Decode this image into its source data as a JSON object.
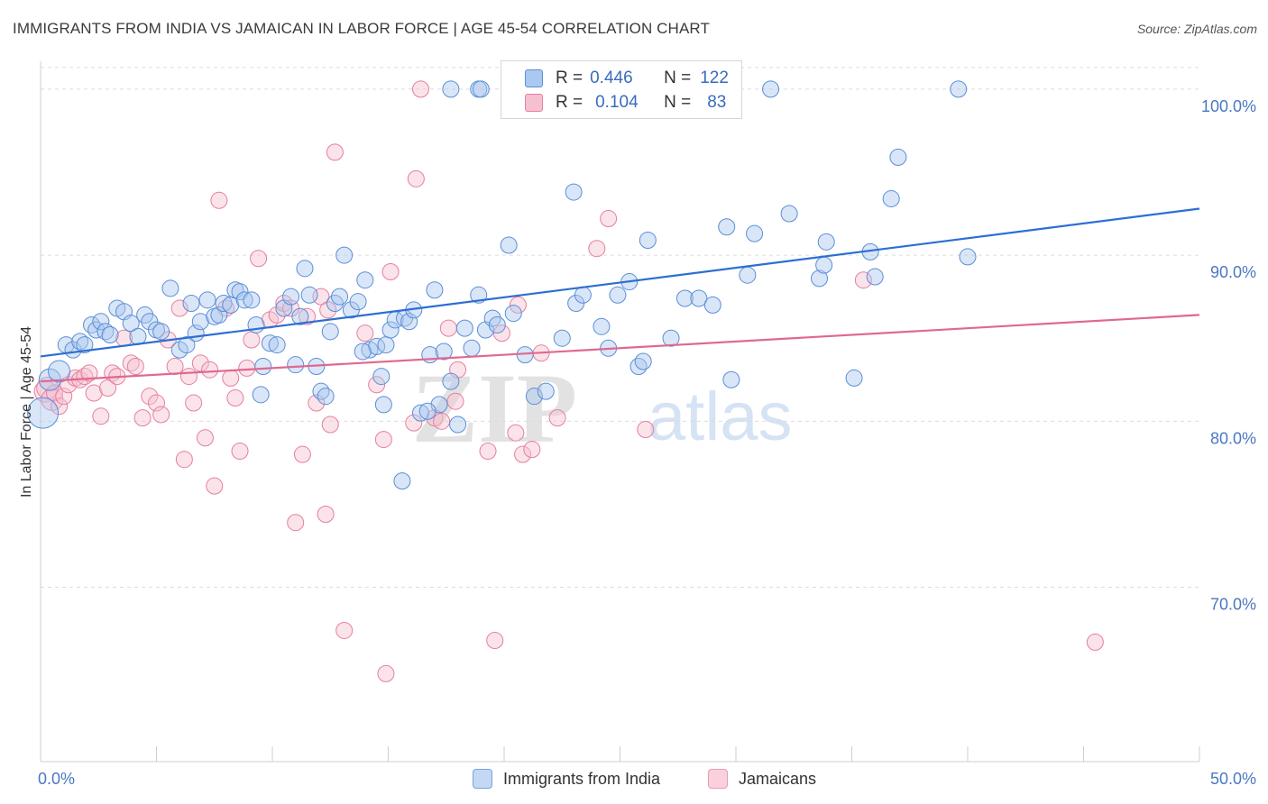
{
  "title": "IMMIGRANTS FROM INDIA VS JAMAICAN IN LABOR FORCE | AGE 45-54 CORRELATION CHART",
  "source": "Source: ZipAtlas.com",
  "watermark": {
    "zip": "ZIP",
    "atlas": "atlas"
  },
  "colors": {
    "india_fill": "#aac8f0",
    "india_stroke": "#5b8ed6",
    "india_line": "#2c6fd1",
    "jam_fill": "#f7c0d0",
    "jam_stroke": "#e57fa0",
    "jam_line": "#e0688f",
    "tick_text": "#4a78c2",
    "grid": "#dcdcdc"
  },
  "legend": {
    "india": {
      "r_label": "R =",
      "r_value": "0.446",
      "n_label": "N =",
      "n_value": "122"
    },
    "jam": {
      "r_label": "R =",
      "r_value": "0.104",
      "n_label": "N =",
      "n_value": "83"
    }
  },
  "bottom_legend": {
    "india": "Immigrants from India",
    "jam": "Jamaicans"
  },
  "chart_data": {
    "type": "scatter",
    "title": "IMMIGRANTS FROM INDIA VS JAMAICAN IN LABOR FORCE | AGE 45-54 CORRELATION CHART",
    "xlabel": "",
    "ylabel": "In Labor Force | Age 45-54",
    "xlim": [
      0,
      50
    ],
    "ylim": [
      59.5,
      102
    ],
    "y_ticks": [
      70,
      80,
      90,
      100
    ],
    "y_tick_labels": [
      "70.0%",
      "80.0%",
      "90.0%",
      "100.0%"
    ],
    "x_tick_labels": [
      "0.0%",
      "50.0%"
    ],
    "x_minor_ticks": [
      0,
      5,
      10,
      15,
      20,
      25,
      30,
      35,
      40,
      45,
      50
    ],
    "grid": true,
    "legend_position": "top-center",
    "series": [
      {
        "name": "Immigrants from India",
        "trend": [
          [
            0,
            83.9
          ],
          [
            50,
            92.8
          ]
        ],
        "points": [
          [
            0.1,
            80.5
          ],
          [
            0.4,
            82.5
          ],
          [
            0.8,
            83.0
          ],
          [
            1.1,
            84.6
          ],
          [
            1.4,
            84.3
          ],
          [
            1.7,
            84.8
          ],
          [
            1.9,
            84.6
          ],
          [
            2.2,
            85.8
          ],
          [
            2.4,
            85.5
          ],
          [
            2.6,
            86.0
          ],
          [
            2.8,
            85.4
          ],
          [
            3.0,
            85.2
          ],
          [
            3.3,
            86.8
          ],
          [
            3.6,
            86.6
          ],
          [
            3.9,
            85.9
          ],
          [
            4.2,
            85.1
          ],
          [
            4.5,
            86.4
          ],
          [
            4.7,
            86.0
          ],
          [
            5.0,
            85.5
          ],
          [
            5.2,
            85.4
          ],
          [
            5.6,
            88.0
          ],
          [
            6.0,
            84.3
          ],
          [
            6.3,
            84.6
          ],
          [
            6.5,
            87.1
          ],
          [
            6.7,
            85.3
          ],
          [
            6.9,
            86.0
          ],
          [
            7.2,
            87.3
          ],
          [
            7.5,
            86.3
          ],
          [
            7.7,
            86.4
          ],
          [
            7.9,
            87.1
          ],
          [
            8.2,
            87.0
          ],
          [
            8.4,
            87.9
          ],
          [
            8.6,
            87.8
          ],
          [
            8.8,
            87.3
          ],
          [
            9.1,
            87.3
          ],
          [
            9.3,
            85.8
          ],
          [
            9.5,
            81.6
          ],
          [
            9.6,
            83.3
          ],
          [
            9.9,
            84.7
          ],
          [
            10.2,
            84.6
          ],
          [
            10.5,
            86.8
          ],
          [
            10.8,
            87.5
          ],
          [
            11.0,
            83.4
          ],
          [
            11.2,
            86.3
          ],
          [
            11.4,
            89.2
          ],
          [
            11.6,
            87.6
          ],
          [
            11.9,
            83.3
          ],
          [
            12.1,
            81.8
          ],
          [
            12.3,
            81.5
          ],
          [
            12.5,
            85.4
          ],
          [
            12.7,
            87.1
          ],
          [
            12.9,
            87.5
          ],
          [
            13.1,
            90.0
          ],
          [
            13.4,
            86.7
          ],
          [
            13.7,
            87.2
          ],
          [
            14.0,
            88.5
          ],
          [
            14.2,
            84.3
          ],
          [
            14.5,
            84.5
          ],
          [
            14.7,
            82.7
          ],
          [
            14.9,
            84.6
          ],
          [
            15.1,
            85.5
          ],
          [
            15.3,
            86.1
          ],
          [
            15.6,
            76.4
          ],
          [
            15.7,
            86.2
          ],
          [
            15.9,
            86.0
          ],
          [
            16.1,
            86.7
          ],
          [
            16.4,
            80.5
          ],
          [
            16.8,
            84.0
          ],
          [
            17.0,
            87.9
          ],
          [
            17.2,
            81.0
          ],
          [
            17.4,
            84.2
          ],
          [
            17.7,
            82.4
          ],
          [
            18.0,
            79.8
          ],
          [
            18.3,
            85.6
          ],
          [
            18.6,
            84.4
          ],
          [
            18.9,
            87.6
          ],
          [
            19.2,
            85.5
          ],
          [
            19.5,
            86.2
          ],
          [
            19.7,
            85.8
          ],
          [
            20.2,
            90.6
          ],
          [
            20.4,
            86.5
          ],
          [
            20.9,
            84.0
          ],
          [
            21.3,
            81.5
          ],
          [
            21.8,
            81.8
          ],
          [
            22.0,
            100.0
          ],
          [
            22.5,
            85.0
          ],
          [
            23.0,
            93.8
          ],
          [
            23.1,
            87.1
          ],
          [
            23.4,
            87.6
          ],
          [
            24.2,
            85.7
          ],
          [
            24.5,
            84.4
          ],
          [
            24.9,
            87.6
          ],
          [
            25.4,
            88.4
          ],
          [
            25.8,
            83.3
          ],
          [
            26.0,
            83.6
          ],
          [
            26.2,
            90.9
          ],
          [
            27.2,
            85.0
          ],
          [
            27.8,
            87.4
          ],
          [
            28.4,
            87.4
          ],
          [
            29.0,
            87.0
          ],
          [
            29.6,
            91.7
          ],
          [
            29.8,
            82.5
          ],
          [
            30.5,
            88.8
          ],
          [
            30.8,
            91.3
          ],
          [
            31.5,
            100.0
          ],
          [
            32.3,
            92.5
          ],
          [
            33.6,
            88.6
          ],
          [
            33.8,
            89.4
          ],
          [
            33.9,
            90.8
          ],
          [
            35.1,
            82.6
          ],
          [
            35.8,
            90.2
          ],
          [
            36.0,
            88.7
          ],
          [
            36.7,
            93.4
          ],
          [
            37.0,
            95.9
          ],
          [
            39.6,
            100.0
          ],
          [
            40.0,
            89.9
          ],
          [
            17.7,
            100.0
          ],
          [
            18.9,
            100.0
          ],
          [
            19.0,
            100.0
          ],
          [
            16.7,
            80.6
          ],
          [
            14.8,
            81.0
          ],
          [
            13.9,
            84.2
          ]
        ]
      },
      {
        "name": "Jamaicans",
        "trend": [
          [
            0,
            82.4
          ],
          [
            50,
            86.4
          ]
        ],
        "points": [
          [
            0.2,
            81.8
          ],
          [
            0.3,
            82.0
          ],
          [
            0.5,
            81.3
          ],
          [
            0.6,
            81.7
          ],
          [
            0.8,
            80.9
          ],
          [
            1.0,
            81.5
          ],
          [
            1.2,
            82.2
          ],
          [
            1.5,
            82.6
          ],
          [
            1.7,
            82.5
          ],
          [
            1.9,
            82.7
          ],
          [
            2.1,
            82.9
          ],
          [
            2.3,
            81.7
          ],
          [
            2.6,
            80.3
          ],
          [
            2.9,
            82.0
          ],
          [
            3.1,
            82.9
          ],
          [
            3.3,
            82.7
          ],
          [
            3.6,
            85.0
          ],
          [
            3.9,
            83.5
          ],
          [
            4.1,
            83.3
          ],
          [
            4.4,
            80.2
          ],
          [
            4.7,
            81.5
          ],
          [
            5.0,
            81.1
          ],
          [
            5.2,
            80.4
          ],
          [
            5.5,
            84.9
          ],
          [
            5.8,
            83.3
          ],
          [
            6.0,
            86.8
          ],
          [
            6.2,
            77.7
          ],
          [
            6.4,
            82.7
          ],
          [
            6.6,
            81.1
          ],
          [
            6.9,
            83.5
          ],
          [
            7.1,
            79.0
          ],
          [
            7.3,
            83.1
          ],
          [
            7.5,
            76.1
          ],
          [
            7.7,
            93.3
          ],
          [
            8.0,
            86.8
          ],
          [
            8.2,
            82.6
          ],
          [
            8.4,
            81.4
          ],
          [
            8.6,
            78.2
          ],
          [
            8.9,
            83.2
          ],
          [
            9.1,
            84.9
          ],
          [
            9.4,
            89.8
          ],
          [
            9.9,
            86.1
          ],
          [
            10.2,
            86.4
          ],
          [
            10.5,
            87.1
          ],
          [
            10.8,
            86.8
          ],
          [
            11.0,
            73.9
          ],
          [
            11.3,
            78.0
          ],
          [
            11.5,
            86.3
          ],
          [
            11.9,
            81.1
          ],
          [
            12.1,
            87.5
          ],
          [
            12.3,
            74.4
          ],
          [
            12.4,
            86.7
          ],
          [
            12.5,
            79.8
          ],
          [
            12.7,
            96.2
          ],
          [
            13.1,
            67.4
          ],
          [
            14.0,
            85.3
          ],
          [
            14.5,
            82.2
          ],
          [
            14.8,
            78.9
          ],
          [
            14.9,
            64.8
          ],
          [
            15.1,
            89.0
          ],
          [
            16.1,
            79.9
          ],
          [
            16.2,
            94.6
          ],
          [
            16.4,
            100.0
          ],
          [
            17.0,
            80.2
          ],
          [
            17.3,
            80.0
          ],
          [
            17.6,
            85.6
          ],
          [
            17.9,
            81.2
          ],
          [
            18.0,
            83.1
          ],
          [
            19.3,
            78.2
          ],
          [
            19.6,
            66.8
          ],
          [
            19.9,
            85.3
          ],
          [
            20.5,
            79.3
          ],
          [
            20.8,
            78.0
          ],
          [
            21.2,
            78.3
          ],
          [
            21.6,
            84.1
          ],
          [
            22.3,
            80.2
          ],
          [
            24.0,
            90.4
          ],
          [
            24.5,
            92.2
          ],
          [
            26.1,
            79.5
          ],
          [
            28.6,
            100.0
          ],
          [
            35.5,
            88.5
          ],
          [
            45.5,
            66.7
          ],
          [
            20.6,
            87.0
          ]
        ]
      }
    ]
  }
}
